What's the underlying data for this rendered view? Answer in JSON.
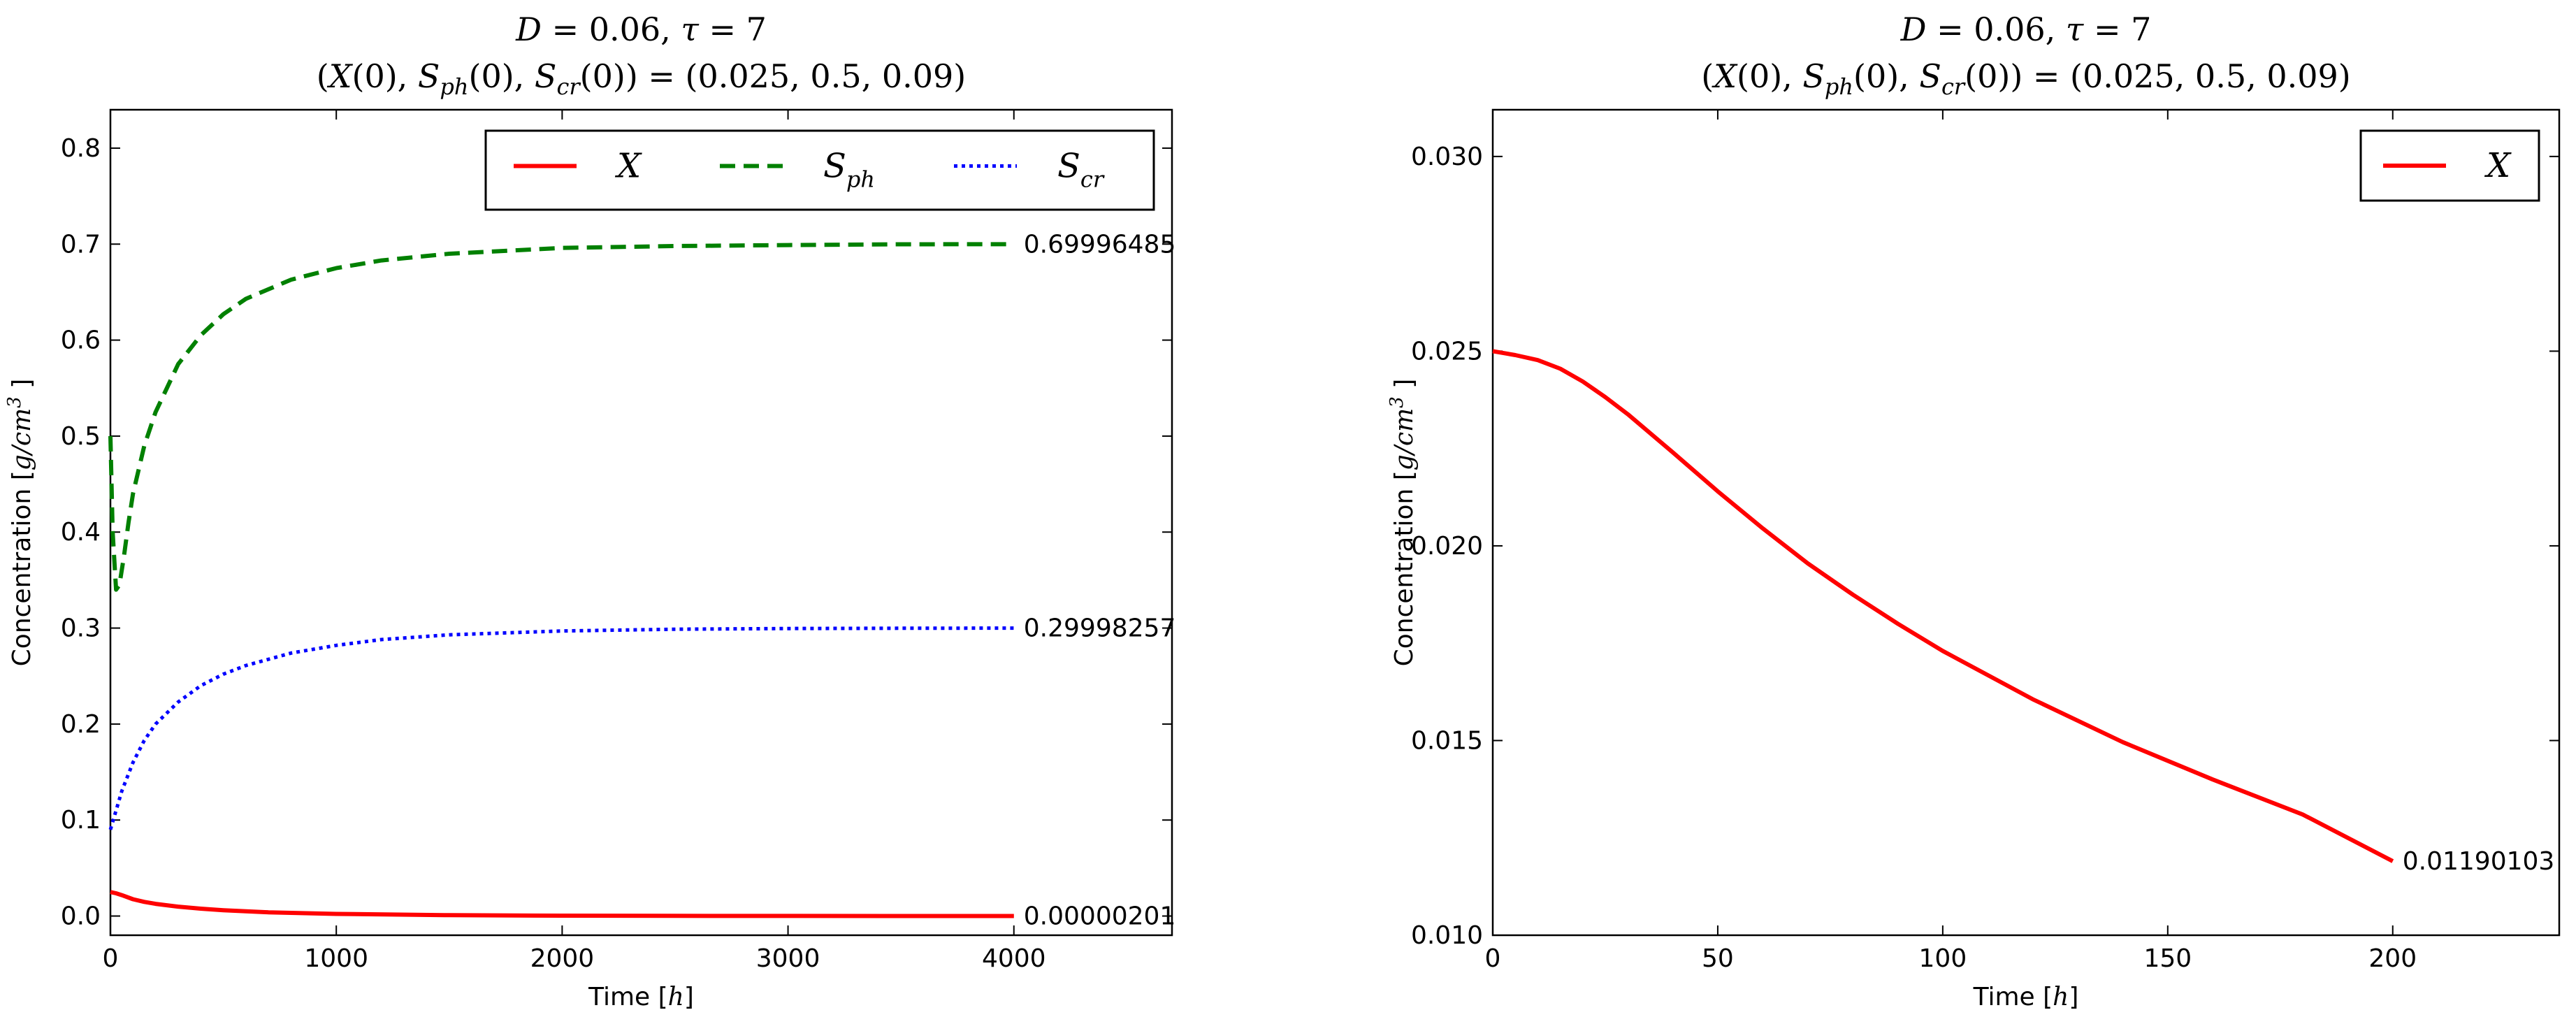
{
  "chart_data": [
    {
      "type": "line",
      "title_line1_parts": [
        "D",
        " = 0.06,   ",
        "τ",
        " = 7"
      ],
      "title_line2_parts": [
        "(",
        "X",
        "(0), ",
        "S",
        "ph",
        "(0), ",
        "S",
        "cr",
        "(0)) = (0.025, 0.5, 0.09)"
      ],
      "xlabel": "Time [h]",
      "xlabel_parts": [
        "Time [",
        "h",
        "]"
      ],
      "ylabel_parts": [
        "Concentration [",
        "g/cm",
        "3",
        " ]"
      ],
      "xlim": [
        0,
        4700
      ],
      "ylim": [
        -0.02,
        0.84
      ],
      "xticks": [
        0,
        1000,
        2000,
        3000,
        4000
      ],
      "xtick_labels": [
        "0",
        "1000",
        "2000",
        "3000",
        "4000"
      ],
      "yticks": [
        0.0,
        0.1,
        0.2,
        0.3,
        0.4,
        0.5,
        0.6,
        0.7,
        0.8
      ],
      "ytick_labels": [
        "0.0",
        "0.1",
        "0.2",
        "0.3",
        "0.4",
        "0.5",
        "0.6",
        "0.7",
        "0.8"
      ],
      "grid": false,
      "legend_position": "top-right",
      "series": [
        {
          "name": "X",
          "legend_main": "X",
          "legend_sub": "",
          "color": "#ff0000",
          "style": "solid",
          "x": [
            0,
            25,
            50,
            100,
            150,
            200,
            300,
            400,
            500,
            700,
            1000,
            1500,
            2000,
            2500,
            3000,
            3500,
            4000
          ],
          "y": [
            0.025,
            0.0237,
            0.0218,
            0.0175,
            0.0147,
            0.0127,
            0.0098,
            0.0077,
            0.0061,
            0.0039,
            0.0022,
            0.0009,
            0.0004,
            0.00017,
            8e-05,
            4e-05,
            2.01e-06
          ],
          "end_label": "0.00000201"
        },
        {
          "name": "S_ph",
          "legend_main": "S",
          "legend_sub": "ph",
          "color": "#008000",
          "style": "dashed",
          "x": [
            0,
            10,
            25,
            40,
            60,
            80,
            100,
            150,
            200,
            300,
            400,
            500,
            600,
            800,
            1000,
            1200,
            1500,
            2000,
            2500,
            3000,
            3500,
            4000
          ],
          "y": [
            0.5,
            0.4,
            0.34,
            0.345,
            0.375,
            0.41,
            0.44,
            0.49,
            0.525,
            0.575,
            0.605,
            0.627,
            0.643,
            0.663,
            0.675,
            0.683,
            0.69,
            0.696,
            0.698,
            0.699,
            0.6998,
            0.69996485
          ],
          "end_label": "0.69996485"
        },
        {
          "name": "S_cr",
          "legend_main": "S",
          "legend_sub": "cr",
          "color": "#0000ff",
          "style": "dotted",
          "x": [
            0,
            25,
            50,
            100,
            150,
            200,
            300,
            400,
            500,
            600,
            800,
            1000,
            1200,
            1500,
            2000,
            2500,
            3000,
            3500,
            4000
          ],
          "y": [
            0.09,
            0.11,
            0.13,
            0.16,
            0.183,
            0.2,
            0.223,
            0.24,
            0.252,
            0.261,
            0.274,
            0.282,
            0.288,
            0.293,
            0.297,
            0.2988,
            0.2995,
            0.2998,
            0.29998257
          ],
          "end_label": "0.29998257"
        }
      ]
    },
    {
      "type": "line",
      "title_line1_parts": [
        "D",
        " = 0.06,   ",
        "τ",
        " = 7"
      ],
      "title_line2_parts": [
        "(",
        "X",
        "(0), ",
        "S",
        "ph",
        "(0), ",
        "S",
        "cr",
        "(0)) = (0.025, 0.5, 0.09)"
      ],
      "xlabel": "Time [h]",
      "xlabel_parts": [
        "Time [",
        "h",
        "]"
      ],
      "ylabel_parts": [
        "Concentration [",
        "g/cm",
        "3",
        " ]"
      ],
      "xlim": [
        0,
        237
      ],
      "ylim": [
        0.01,
        0.0312
      ],
      "xticks": [
        0,
        50,
        100,
        150,
        200
      ],
      "xtick_labels": [
        "0",
        "50",
        "100",
        "150",
        "200"
      ],
      "yticks": [
        0.01,
        0.015,
        0.02,
        0.025,
        0.03
      ],
      "ytick_labels": [
        "0.010",
        "0.015",
        "0.020",
        "0.025",
        "0.030"
      ],
      "grid": false,
      "legend_position": "top-right",
      "series": [
        {
          "name": "X",
          "legend_main": "X",
          "legend_sub": "",
          "color": "#ff0000",
          "style": "solid",
          "x": [
            0,
            5,
            10,
            15,
            20,
            25,
            30,
            40,
            50,
            60,
            70,
            80,
            90,
            100,
            120,
            140,
            160,
            180,
            200
          ],
          "y": [
            0.025,
            0.0249,
            0.02477,
            0.02455,
            0.02422,
            0.02382,
            0.02338,
            0.0224,
            0.0214,
            0.02045,
            0.01955,
            0.01875,
            0.018,
            0.0173,
            0.01606,
            0.01496,
            0.014,
            0.0131,
            0.01190103
          ],
          "end_label": "0.01190103"
        }
      ]
    }
  ]
}
